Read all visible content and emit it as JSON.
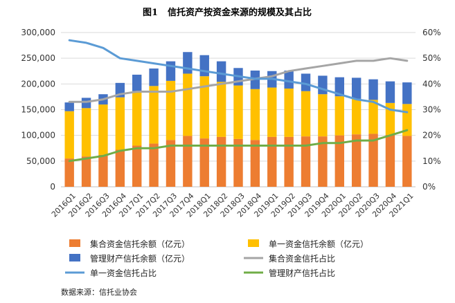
{
  "chart_data": {
    "type": "bar",
    "title_prefix": "图1",
    "title": "信托资产按资金来源的规模及其占比",
    "categories": [
      "2016Q1",
      "2016Q2",
      "2016Q3",
      "2016Q4",
      "2017Q1",
      "2017Q2",
      "2017Q3",
      "2017Q4",
      "2018Q1",
      "2018Q2",
      "2018Q3",
      "2018Q4",
      "2019Q1",
      "2019Q2",
      "2019Q3",
      "2019Q4",
      "2020Q1",
      "2020Q2",
      "2020Q3",
      "2020Q4",
      "2021Q1"
    ],
    "y_left": {
      "min": 0,
      "max": 300000,
      "step": 50000,
      "ticks": [
        "0",
        "50,000",
        "100,000",
        "150,000",
        "200,000",
        "250,000",
        "300,000"
      ]
    },
    "y_right": {
      "min": 0,
      "max": 60,
      "step": 10,
      "ticks": [
        "0%",
        "10%",
        "20%",
        "30%",
        "40%",
        "50%",
        "60%"
      ]
    },
    "series": [
      {
        "name": "集合资金信托余额（亿元）",
        "kind": "bar",
        "color": "#ED7D31",
        "values": [
          55000,
          59000,
          62000,
          72000,
          80000,
          84000,
          91000,
          99000,
          94000,
          97000,
          93000,
          91000,
          97000,
          97000,
          98000,
          98000,
          100000,
          102000,
          103000,
          101000,
          99000
        ]
      },
      {
        "name": "单一资金信托余额（亿元）",
        "kind": "bar",
        "color": "#FFC000",
        "values": [
          92000,
          94000,
          98000,
          102000,
          106000,
          112000,
          115000,
          121000,
          121000,
          107000,
          104000,
          99000,
          96000,
          94000,
          88000,
          82000,
          76000,
          69000,
          66000,
          62000,
          62000
        ]
      },
      {
        "name": "管理财产信托余额（亿元）",
        "kind": "bar",
        "color": "#4472C4",
        "values": [
          17000,
          20000,
          20000,
          28000,
          32000,
          34000,
          38000,
          42000,
          41000,
          40000,
          34000,
          36000,
          32000,
          35000,
          34000,
          36000,
          37000,
          41000,
          40000,
          42000,
          42000
        ]
      },
      {
        "name": "集合资金信托占比",
        "kind": "line",
        "color": "#A5A5A5",
        "values": [
          33,
          33,
          34,
          36,
          37,
          37,
          37,
          38,
          39,
          40,
          41,
          42,
          43,
          45,
          46,
          47,
          48,
          49,
          49,
          50,
          49
        ]
      },
      {
        "name": "单一资金信托占比",
        "kind": "line",
        "color": "#5B9BD5",
        "values": [
          57,
          56,
          54,
          50,
          49,
          48,
          47,
          46,
          45,
          44,
          43,
          42,
          42,
          41,
          40,
          38,
          36,
          34,
          33,
          30,
          29
        ]
      },
      {
        "name": "管理财产信托占比",
        "kind": "line",
        "color": "#70AD47",
        "values": [
          10,
          11,
          12,
          14,
          15,
          15,
          16,
          16,
          16,
          16,
          16,
          16,
          16,
          16,
          16,
          17,
          17,
          18,
          18,
          20,
          22
        ]
      }
    ],
    "legend_position": "bottom",
    "source_note": "数据来源：信托业协会"
  }
}
